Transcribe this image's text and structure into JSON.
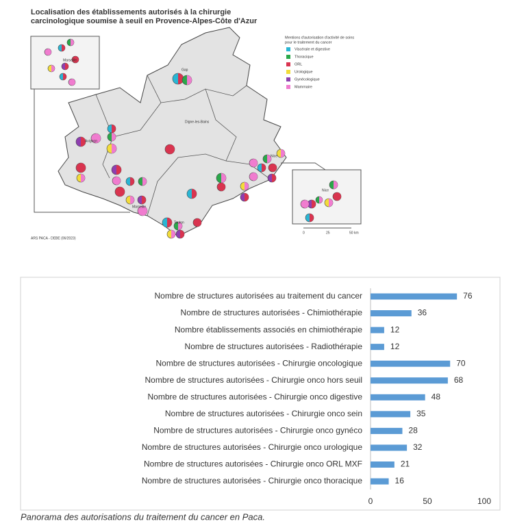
{
  "map": {
    "title": [
      "Localisation des établissements autorisés à la chirurgie",
      "carcinologique soumise à seuil en Provence-Alpes-Côte d'Azur"
    ],
    "legend_title": [
      "Mentions d'autorisation d'activité de soins",
      "pour le traitement du cancer"
    ],
    "legend": [
      {
        "label": "Viscérale et digestive",
        "color": "#29b6d4"
      },
      {
        "label": "Thoracique",
        "color": "#2aa84a"
      },
      {
        "label": "ORL",
        "color": "#d9344f"
      },
      {
        "label": "Urologique",
        "color": "#f2dc3a"
      },
      {
        "label": "Gynécologique",
        "color": "#8e3fb0"
      },
      {
        "label": "Mammaire",
        "color": "#f07ccf"
      }
    ],
    "cities": [
      "Gap",
      "Digne-les-Bains",
      "Avignon",
      "Marseille",
      "Toulon",
      "Nice",
      "Marseille",
      "Nice"
    ],
    "scale": [
      "0",
      "25",
      "50 km"
    ],
    "source": "ARS PACA - DEBE (06/2023)"
  },
  "chart_data": {
    "type": "bar",
    "orientation": "horizontal",
    "categories": [
      "Nombre de structures autorisées au traitement du cancer",
      "Nombre de structures autorisées - Chimiothérapie",
      "Nombre établissements associés en chimiothérapie",
      "Nombre de structures autorisées - Radiothérapie",
      "Nombre de structures autorisées - Chirurgie oncologique",
      "Nombre de structures autorisées - Chirurgie onco hors seuil",
      "Nombre de structures autorisées - Chirurgie onco digestive",
      "Nombre de structures autorisées - Chirurgie onco sein",
      "Nombre de structures autorisées - Chirurgie onco gynéco",
      "Nombre de structures autorisées - Chirurgie onco urologique",
      "Nombre de structures autorisées - Chirurgie onco ORL MXF",
      "Nombre de structures autorisées - Chirurgie onco thoracique"
    ],
    "values": [
      76,
      36,
      12,
      12,
      70,
      68,
      48,
      35,
      28,
      32,
      21,
      16
    ],
    "color": "#5b9bd5",
    "xlim": [
      0,
      100
    ],
    "xticks": [
      0,
      50,
      100
    ],
    "grid": false
  },
  "caption": "Panorama des autorisations du traitement du cancer en Paca."
}
